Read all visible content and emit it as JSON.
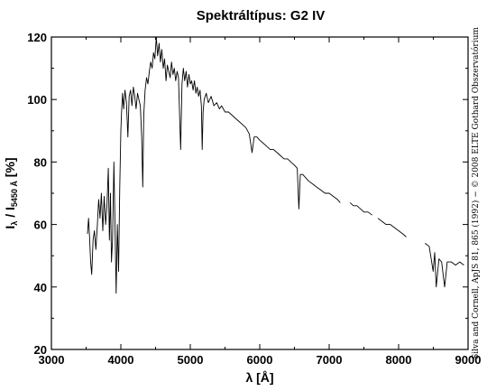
{
  "chart_data": {
    "type": "line",
    "title": "Spektráltípus: G2 IV",
    "xlabel": "λ [Å]",
    "ylabel": "Iλ / I5450 Å [%]",
    "ylabel_parts": {
      "main": "I",
      "sub1": "λ",
      "sep": " / I",
      "sub2": "5450 Å",
      "unit": " [%]"
    },
    "xlim": [
      3000,
      9000
    ],
    "ylim": [
      20,
      120
    ],
    "x_ticks": [
      3000,
      4000,
      5000,
      6000,
      7000,
      8000,
      9000
    ],
    "y_ticks": [
      20,
      40,
      60,
      80,
      100,
      120
    ],
    "grid": false,
    "credit": "Silva and Cornell, ApJS 81, 865 (1992) − © 2008 ELTE Gothard Obszervatórium",
    "series": [
      {
        "color": "#000000",
        "segments": [
          [
            [
              3520,
              57
            ],
            [
              3535,
              62
            ],
            [
              3550,
              56
            ],
            [
              3565,
              48
            ],
            [
              3580,
              44
            ],
            [
              3600,
              55
            ],
            [
              3620,
              58
            ],
            [
              3640,
              52
            ],
            [
              3660,
              59
            ],
            [
              3680,
              68
            ],
            [
              3700,
              62
            ],
            [
              3720,
              70
            ],
            [
              3740,
              58
            ],
            [
              3760,
              69
            ],
            [
              3780,
              60
            ],
            [
              3800,
              66
            ],
            [
              3820,
              78
            ],
            [
              3835,
              55
            ],
            [
              3850,
              70
            ],
            [
              3865,
              48
            ],
            [
              3880,
              55
            ],
            [
              3900,
              80
            ],
            [
              3915,
              60
            ],
            [
              3933,
              38
            ],
            [
              3950,
              60
            ],
            [
              3968,
              45
            ],
            [
              3985,
              72
            ],
            [
              4000,
              90
            ],
            [
              4010,
              96
            ],
            [
              4025,
              102
            ],
            [
              4040,
              97
            ],
            [
              4060,
              103
            ],
            [
              4080,
              99
            ],
            [
              4101,
              88
            ],
            [
              4120,
              101
            ],
            [
              4140,
              103
            ],
            [
              4160,
              98
            ],
            [
              4180,
              104
            ],
            [
              4200,
              101
            ],
            [
              4220,
              97
            ],
            [
              4240,
              102
            ],
            [
              4260,
              100
            ],
            [
              4280,
              98
            ],
            [
              4300,
              88
            ],
            [
              4315,
              72
            ],
            [
              4330,
              95
            ],
            [
              4350,
              103
            ],
            [
              4370,
              107
            ],
            [
              4390,
              105
            ],
            [
              4410,
              109
            ],
            [
              4430,
              112
            ],
            [
              4450,
              110
            ],
            [
              4470,
              115
            ],
            [
              4490,
              113
            ],
            [
              4510,
              120
            ],
            [
              4530,
              114
            ],
            [
              4550,
              118
            ],
            [
              4570,
              112
            ],
            [
              4590,
              116
            ],
            [
              4610,
              110
            ],
            [
              4630,
              113
            ],
            [
              4650,
              106
            ],
            [
              4670,
              111
            ],
            [
              4690,
              109
            ],
            [
              4710,
              107
            ],
            [
              4730,
              112
            ],
            [
              4750,
              108
            ],
            [
              4770,
              110
            ],
            [
              4790,
              106
            ],
            [
              4810,
              109
            ],
            [
              4830,
              107
            ],
            [
              4861,
              84
            ],
            [
              4880,
              105
            ],
            [
              4900,
              110
            ],
            [
              4920,
              106
            ],
            [
              4940,
              109
            ],
            [
              4960,
              104
            ],
            [
              4980,
              108
            ],
            [
              5000,
              105
            ],
            [
              5020,
              106
            ],
            [
              5040,
              103
            ],
            [
              5060,
              106
            ],
            [
              5080,
              102
            ],
            [
              5100,
              104
            ],
            [
              5120,
              101
            ],
            [
              5140,
              103
            ],
            [
              5160,
              98
            ],
            [
              5172,
              84
            ],
            [
              5185,
              96
            ],
            [
              5200,
              100
            ],
            [
              5230,
              102
            ],
            [
              5260,
              99
            ],
            [
              5300,
              101
            ],
            [
              5340,
              98
            ],
            [
              5380,
              99
            ],
            [
              5420,
              97
            ],
            [
              5450,
              98
            ],
            [
              5500,
              96
            ],
            [
              5550,
              96
            ],
            [
              5600,
              95
            ],
            [
              5650,
              94
            ],
            [
              5700,
              93
            ],
            [
              5750,
              92
            ],
            [
              5800,
              91
            ],
            [
              5850,
              89
            ],
            [
              5890,
              83
            ],
            [
              5920,
              88
            ],
            [
              5960,
              88
            ],
            [
              6000,
              87
            ],
            [
              6050,
              86
            ],
            [
              6100,
              85
            ],
            [
              6150,
              84
            ],
            [
              6200,
              84
            ],
            [
              6250,
              83
            ],
            [
              6300,
              82
            ],
            [
              6350,
              81
            ],
            [
              6400,
              81
            ],
            [
              6450,
              80
            ],
            [
              6500,
              79
            ],
            [
              6540,
              78
            ],
            [
              6563,
              65
            ],
            [
              6585,
              76
            ],
            [
              6620,
              76
            ],
            [
              6660,
              75
            ],
            [
              6700,
              74
            ],
            [
              6760,
              73
            ],
            [
              6820,
              72
            ],
            [
              6880,
              71
            ],
            [
              6940,
              70
            ],
            [
              7000,
              70
            ],
            [
              7060,
              69
            ],
            [
              7120,
              68
            ],
            [
              7160,
              67
            ]
          ],
          [
            [
              7300,
              67
            ],
            [
              7350,
              66
            ],
            [
              7400,
              66
            ],
            [
              7450,
              65
            ],
            [
              7500,
              64
            ],
            [
              7560,
              64
            ],
            [
              7620,
              63
            ]
          ],
          [
            [
              7700,
              62
            ],
            [
              7760,
              61
            ],
            [
              7820,
              60
            ],
            [
              7880,
              60
            ],
            [
              7940,
              59
            ],
            [
              8000,
              58
            ],
            [
              8060,
              57
            ],
            [
              8110,
              56
            ]
          ],
          [
            [
              8380,
              54
            ],
            [
              8440,
              53
            ],
            [
              8498,
              45
            ],
            [
              8520,
              51
            ],
            [
              8542,
              40
            ],
            [
              8580,
              49
            ],
            [
              8620,
              48
            ],
            [
              8662,
              40
            ],
            [
              8700,
              48
            ],
            [
              8760,
              48
            ],
            [
              8820,
              47
            ],
            [
              8880,
              48
            ],
            [
              8940,
              47
            ]
          ]
        ]
      }
    ]
  }
}
